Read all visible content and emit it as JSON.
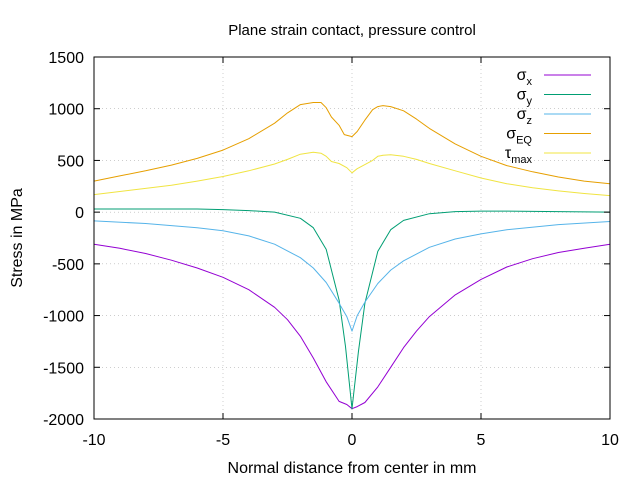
{
  "chart_data": {
    "type": "line",
    "title": "Plane strain contact, pressure control",
    "xlabel": "Normal distance from center in mm",
    "ylabel": "Stress in MPa",
    "xlim": [
      -10,
      10
    ],
    "ylim": [
      -2000,
      1500
    ],
    "x_ticks": [
      -10,
      -5,
      0,
      5,
      10
    ],
    "y_ticks": [
      -2000,
      -1500,
      -1000,
      -500,
      0,
      500,
      1000,
      1500
    ],
    "x_tick_labels": [
      "-10",
      "-5",
      "0",
      "5",
      "10"
    ],
    "y_tick_labels": [
      "-2000",
      "-1500",
      "-1000",
      "-500",
      "0",
      "500",
      "1000",
      "1500"
    ],
    "grid": true,
    "legend_position": "top-right",
    "series": [
      {
        "name": "σx",
        "name_main": "σ",
        "name_sub": "x",
        "color": "#9400d3",
        "x": [
          -10,
          -9,
          -8,
          -7,
          -6,
          -5,
          -4,
          -3,
          -2.5,
          -2,
          -1.5,
          -1,
          -0.5,
          -0.2,
          0,
          0.2,
          0.5,
          1,
          1.5,
          2,
          2.5,
          3,
          4,
          5,
          6,
          7,
          8,
          9,
          10
        ],
        "y": [
          -310,
          -350,
          -400,
          -465,
          -540,
          -630,
          -750,
          -920,
          -1040,
          -1200,
          -1410,
          -1640,
          -1830,
          -1860,
          -1900,
          -1880,
          -1840,
          -1690,
          -1500,
          -1310,
          -1150,
          -1010,
          -800,
          -650,
          -530,
          -450,
          -390,
          -350,
          -310
        ]
      },
      {
        "name": "σy",
        "name_main": "σ",
        "name_sub": "y",
        "color": "#009e73",
        "x": [
          -10,
          -8,
          -6,
          -5,
          -4,
          -3,
          -2,
          -1.5,
          -1,
          -0.5,
          -0.25,
          0,
          0.25,
          0.5,
          1,
          1.5,
          2,
          3,
          4,
          5,
          6,
          8,
          10
        ],
        "y": [
          30,
          30,
          30,
          25,
          15,
          0,
          -60,
          -150,
          -360,
          -850,
          -1300,
          -1900,
          -1350,
          -880,
          -380,
          -170,
          -80,
          -15,
          5,
          10,
          10,
          5,
          0
        ]
      },
      {
        "name": "σz",
        "name_main": "σ",
        "name_sub": "z",
        "color": "#56b4e9",
        "x": [
          -10,
          -8,
          -6,
          -5,
          -4,
          -3,
          -2,
          -1.5,
          -1,
          -0.5,
          -0.2,
          0,
          0.2,
          0.5,
          1,
          1.5,
          2,
          3,
          4,
          5,
          6,
          8,
          10
        ],
        "y": [
          -85,
          -110,
          -150,
          -180,
          -230,
          -310,
          -440,
          -540,
          -680,
          -880,
          -1010,
          -1150,
          -1000,
          -870,
          -690,
          -560,
          -470,
          -340,
          -260,
          -210,
          -170,
          -120,
          -90
        ]
      },
      {
        "name": "σEQ",
        "name_main": "σ",
        "name_sub": "EQ",
        "color": "#e69f00",
        "x": [
          -10,
          -9,
          -8,
          -7,
          -6,
          -5,
          -4,
          -3,
          -2.5,
          -2,
          -1.5,
          -1.2,
          -1,
          -0.8,
          -0.5,
          -0.3,
          0,
          0.2,
          0.5,
          0.8,
          1,
          1.2,
          1.5,
          2,
          2.5,
          3,
          4,
          5,
          6,
          7,
          8,
          9,
          10
        ],
        "y": [
          300,
          350,
          400,
          455,
          520,
          600,
          710,
          860,
          960,
          1040,
          1060,
          1060,
          1010,
          920,
          840,
          750,
          730,
          780,
          890,
          990,
          1020,
          1030,
          1020,
          980,
          900,
          810,
          660,
          540,
          450,
          390,
          340,
          300,
          275
        ]
      },
      {
        "name": "τmax",
        "name_main": "τ",
        "name_sub": "max",
        "color": "#f0e442",
        "x": [
          -10,
          -9,
          -8,
          -7,
          -6,
          -5,
          -4,
          -3,
          -2.5,
          -2,
          -1.5,
          -1.2,
          -1,
          -0.8,
          -0.5,
          -0.2,
          0,
          0.2,
          0.5,
          0.8,
          1,
          1.2,
          1.5,
          2,
          2.5,
          3,
          4,
          5,
          6,
          7,
          8,
          9,
          10
        ],
        "y": [
          170,
          200,
          230,
          260,
          300,
          345,
          400,
          465,
          510,
          560,
          580,
          570,
          540,
          490,
          470,
          430,
          380,
          420,
          460,
          500,
          540,
          550,
          555,
          540,
          510,
          470,
          400,
          330,
          275,
          235,
          205,
          180,
          160
        ]
      }
    ]
  }
}
